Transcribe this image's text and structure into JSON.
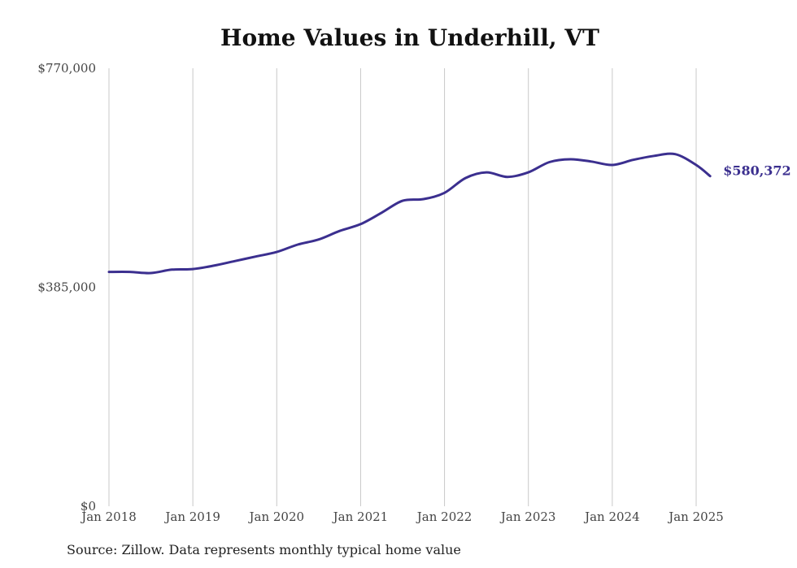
{
  "chart_data": {
    "type": "line",
    "title": "Home Values in Underhill, VT",
    "source_note": "Source: Zillow. Data represents monthly typical home value",
    "ylim": [
      0,
      770000
    ],
    "y_ticks": [
      {
        "value": 0,
        "label": "$0"
      },
      {
        "value": 385000,
        "label": "$385,000"
      },
      {
        "value": 770000,
        "label": "$770,000"
      }
    ],
    "x_ticks": [
      {
        "value": "2018-01",
        "label": "Jan 2018"
      },
      {
        "value": "2019-01",
        "label": "Jan 2019"
      },
      {
        "value": "2020-01",
        "label": "Jan 2020"
      },
      {
        "value": "2021-01",
        "label": "Jan 2021"
      },
      {
        "value": "2022-01",
        "label": "Jan 2022"
      },
      {
        "value": "2023-01",
        "label": "Jan 2023"
      },
      {
        "value": "2024-01",
        "label": "Jan 2024"
      },
      {
        "value": "2025-01",
        "label": "Jan 2025"
      }
    ],
    "grid": "vertical",
    "end_label": "$580,372",
    "colors": {
      "line": "#3b2f8f",
      "grid": "#c8c8c8",
      "axis_text": "#444444"
    },
    "series": [
      {
        "x": [
          "2018-01",
          "2018-04",
          "2018-07",
          "2018-10",
          "2019-01",
          "2019-04",
          "2019-07",
          "2019-10",
          "2020-01",
          "2020-04",
          "2020-07",
          "2020-10",
          "2021-01",
          "2021-04",
          "2021-07",
          "2021-10",
          "2022-01",
          "2022-04",
          "2022-07",
          "2022-10",
          "2023-01",
          "2023-04",
          "2023-07",
          "2023-10",
          "2024-01",
          "2024-04",
          "2024-07",
          "2024-10",
          "2025-01",
          "2025-03"
        ],
        "values": [
          412000,
          412000,
          410000,
          416000,
          417000,
          423000,
          431000,
          439000,
          447000,
          460000,
          469000,
          484000,
          496000,
          516000,
          537000,
          540000,
          551000,
          577000,
          587000,
          579000,
          587000,
          605000,
          610000,
          606000,
          600000,
          609000,
          616000,
          619000,
          600000,
          580372
        ]
      }
    ]
  }
}
